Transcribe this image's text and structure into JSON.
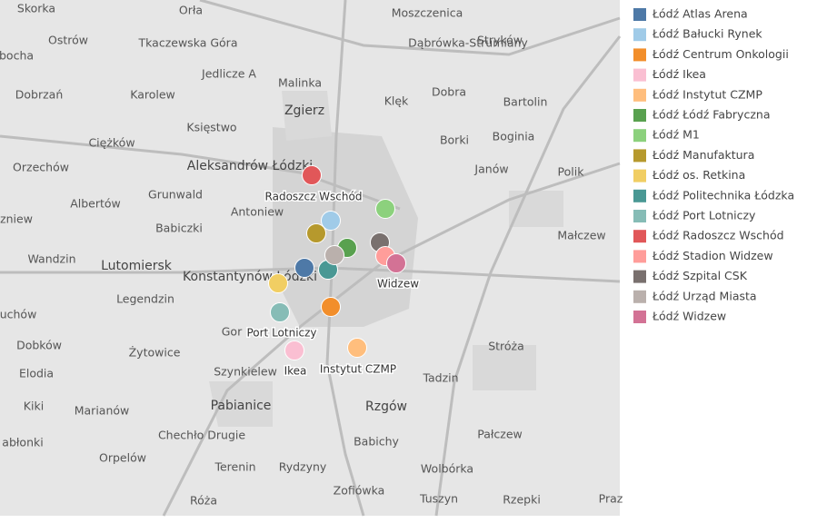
{
  "map": {
    "place_labels": [
      "Skorka",
      "Orła",
      "Moszczenica",
      "Ostrów",
      "Tkaczewska Góra",
      "Dąbrówka-Strumiany",
      "Stryków",
      "bocha",
      "Jedlicze A",
      "Malinka",
      "Dobrzań",
      "Karolew",
      "Dobra",
      "Klęk",
      "Bartolin",
      "Zgierz",
      "Księstwo",
      "Borki",
      "Boginia",
      "Ciężków",
      "Orzechów",
      "Aleksandrów Łódzki",
      "Janów",
      "Polik",
      "Grunwald",
      "Albertów",
      "Antoniew",
      "zniew",
      "Babiczki",
      "Małczew",
      "Wandzin",
      "Lutomiersk",
      "Konstantynów Łódzki",
      "Legendzin",
      "uchów",
      "Gor",
      "Dobków",
      "Żytowice",
      "Stróża",
      "Elodia",
      "Szynkielew",
      "Tadzin",
      "Kiki",
      "Marianów",
      "Pabianice",
      "Rzgów",
      "abłonki",
      "Chechło Drugie",
      "Babichy",
      "Pałczew",
      "Orpelów",
      "Terenin",
      "Rydzyny",
      "Wolbórka",
      "Zofiówka",
      "Róża",
      "Tuszyn",
      "Rzepki",
      "Praz"
    ],
    "markers": [
      {
        "name": "Łódź Atlas Arena",
        "color": "#4e79a7"
      },
      {
        "name": "Łódź Bałucki Rynek",
        "color": "#a0cbe8"
      },
      {
        "name": "Łódź Centrum Onkologii",
        "color": "#f28e2b"
      },
      {
        "name": "Łódź Ikea",
        "color": "#fabfd2",
        "label": "Ikea"
      },
      {
        "name": "Łódź Instytut CZMP",
        "color": "#ffbe7d",
        "label": "Instytut CZMP"
      },
      {
        "name": "Łódź Łódź Fabryczna",
        "color": "#59a14f"
      },
      {
        "name": "Łódź M1",
        "color": "#8cd17d"
      },
      {
        "name": "Łódź Manufaktura",
        "color": "#b6992d"
      },
      {
        "name": "Łódź os. Retkina",
        "color": "#f1ce63"
      },
      {
        "name": "Łódź Politechnika Łódzka",
        "color": "#499894"
      },
      {
        "name": "Łódź Port Lotniczy",
        "color": "#86bcb6",
        "label": "Port Lotniczy"
      },
      {
        "name": "Łódź Radoszcz Wschód",
        "color": "#e15759",
        "label": "Radoszcz Wschód"
      },
      {
        "name": "Łódź Stadion Widzew",
        "color": "#ff9d9a"
      },
      {
        "name": "Łódź Szpital CSK",
        "color": "#79706e"
      },
      {
        "name": "Łódź Urząd Miasta",
        "color": "#bab0ac"
      },
      {
        "name": "Łódź Widzew",
        "color": "#d37295",
        "label": "Widzew"
      }
    ]
  }
}
